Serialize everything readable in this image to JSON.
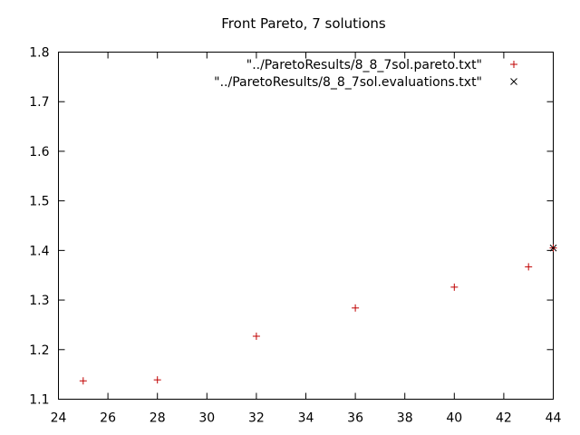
{
  "chart_data": {
    "type": "scatter",
    "title": "Front Pareto, 7 solutions",
    "xlabel": "",
    "ylabel": "",
    "xlim": [
      24,
      44
    ],
    "ylim": [
      1.1,
      1.8
    ],
    "xticks": [
      "24",
      "26",
      "28",
      "30",
      "32",
      "34",
      "36",
      "38",
      "40",
      "42",
      "44"
    ],
    "yticks": [
      "1.1",
      "1.2",
      "1.3",
      "1.4",
      "1.5",
      "1.6",
      "1.7",
      "1.8"
    ],
    "grid": false,
    "legend_position": "top-right",
    "series": [
      {
        "name": "\"../ParetoResults/8_8_7sol.pareto.txt\"",
        "marker": "plus",
        "color": "#c00000",
        "points": [
          {
            "x": 25,
            "y": 1.137
          },
          {
            "x": 28,
            "y": 1.139
          },
          {
            "x": 32,
            "y": 1.227
          },
          {
            "x": 36,
            "y": 1.284
          },
          {
            "x": 40,
            "y": 1.326
          },
          {
            "x": 43,
            "y": 1.367
          },
          {
            "x": 44,
            "y": 1.405
          }
        ]
      },
      {
        "name": "\"../ParetoResults/8_8_7sol.evaluations.txt\"",
        "marker": "cross",
        "color": "#000000",
        "points": [
          {
            "x": 44,
            "y": 1.405
          }
        ]
      }
    ]
  }
}
